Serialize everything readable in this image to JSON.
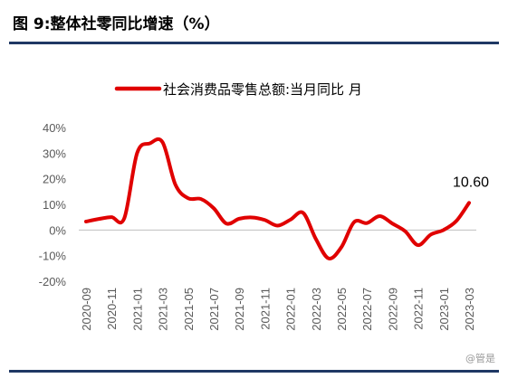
{
  "figure": {
    "title": "图 9:整体社零同比增速（%）",
    "watermark": "@管是"
  },
  "colors": {
    "series": "#e00000",
    "rule": "#1f3864",
    "tick_text": "#595959"
  },
  "chart_data": {
    "type": "line",
    "title": "",
    "xlabel": "",
    "ylabel": "",
    "ylim": [
      -20,
      40
    ],
    "y_ticks": [
      40,
      30,
      20,
      10,
      0,
      -10,
      -20
    ],
    "y_tick_labels": [
      "40%",
      "30%",
      "20%",
      "10%",
      "0%",
      "-10%",
      "-20%"
    ],
    "x_tick_labels": [
      "2020-09",
      "2020-11",
      "2021-01",
      "2021-03",
      "2021-05",
      "2021-07",
      "2021-09",
      "2021-11",
      "2022-01",
      "2022-03",
      "2022-05",
      "2022-07",
      "2022-09",
      "2022-11",
      "2023-01",
      "2023-03"
    ],
    "legend_position": "top",
    "grid": false,
    "x": [
      "2020-09",
      "2020-10",
      "2020-11",
      "2020-12",
      "2021-01",
      "2021-02",
      "2021-03",
      "2021-04",
      "2021-05",
      "2021-06",
      "2021-07",
      "2021-08",
      "2021-09",
      "2021-10",
      "2021-11",
      "2021-12",
      "2022-01",
      "2022-02",
      "2022-03",
      "2022-04",
      "2022-05",
      "2022-06",
      "2022-07",
      "2022-08",
      "2022-09",
      "2022-10",
      "2022-11",
      "2022-12",
      "2023-01",
      "2023-02",
      "2023-03"
    ],
    "series": [
      {
        "name": "社会消费品零售总额:当月同比 月",
        "values": [
          3.3,
          4.3,
          5.0,
          4.6,
          30.0,
          33.8,
          34.2,
          17.7,
          12.4,
          12.1,
          8.5,
          2.5,
          4.4,
          4.9,
          3.9,
          1.7,
          4.0,
          6.7,
          -3.5,
          -11.1,
          -6.7,
          3.1,
          2.7,
          5.4,
          2.5,
          -0.5,
          -5.9,
          -1.8,
          0.0,
          3.5,
          10.6
        ]
      }
    ],
    "annotations": [
      {
        "label": "10.60",
        "x": "2023-03",
        "y": 10.6
      }
    ]
  }
}
